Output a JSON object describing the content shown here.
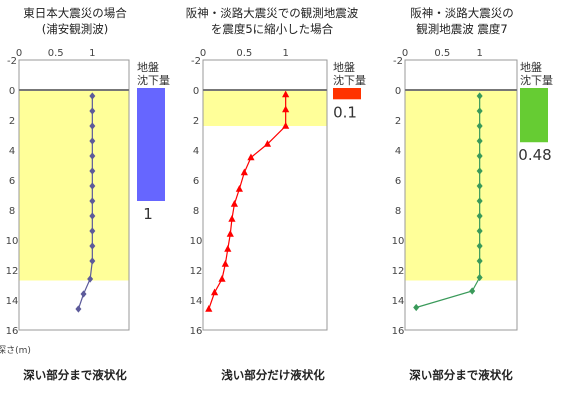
{
  "chart_data": [
    {
      "type": "line",
      "title": [
        "東日本大震災の場合",
        "(浦安観測波)"
      ],
      "x_ticks": [
        "0",
        "0.5",
        "1"
      ],
      "xlim": [
        0,
        1.5
      ],
      "ylim": [
        -2,
        16
      ],
      "y_ticks": [
        -2,
        0,
        2,
        4,
        6,
        8,
        10,
        12,
        14,
        16
      ],
      "ylabel": "深さ(m)",
      "liquefied_depth": [
        0,
        12.7
      ],
      "series": [
        {
          "color": "#5c5a9a",
          "marker": "diamond",
          "points": [
            [
              1,
              0.4
            ],
            [
              1,
              1.4
            ],
            [
              1,
              2.4
            ],
            [
              1,
              3.4
            ],
            [
              1,
              4.4
            ],
            [
              1,
              5.4
            ],
            [
              1,
              6.4
            ],
            [
              1,
              7.4
            ],
            [
              1,
              8.4
            ],
            [
              1,
              9.4
            ],
            [
              1,
              10.4
            ],
            [
              1,
              11.4
            ],
            [
              0.97,
              12.6
            ],
            [
              0.88,
              13.6
            ],
            [
              0.81,
              14.6
            ]
          ]
        }
      ],
      "settlement_label": [
        "地盤",
        "沈下量"
      ],
      "settlement_value": 1,
      "settlement_text": "1",
      "settlement_color": "#6666ff",
      "caption": "深い部分まで液状化"
    },
    {
      "type": "line",
      "title": [
        "阪神・淡路大震災での観測地震波",
        "を震度5に縮小した場合"
      ],
      "x_ticks": [
        "0",
        "0.5",
        "1"
      ],
      "xlim": [
        0,
        1.5
      ],
      "ylim": [
        -2,
        16
      ],
      "y_ticks": [
        -2,
        0,
        2,
        4,
        6,
        8,
        10,
        12,
        14,
        16
      ],
      "liquefied_depth": [
        0,
        2.4
      ],
      "series": [
        {
          "color": "#ff0000",
          "marker": "triangle",
          "points": [
            [
              1,
              0.3
            ],
            [
              1,
              1.3
            ],
            [
              1,
              2.4
            ],
            [
              0.78,
              3.6
            ],
            [
              0.58,
              4.5
            ],
            [
              0.5,
              5.5
            ],
            [
              0.44,
              6.6
            ],
            [
              0.38,
              7.6
            ],
            [
              0.35,
              8.6
            ],
            [
              0.33,
              9.6
            ],
            [
              0.3,
              10.6
            ],
            [
              0.27,
              11.6
            ],
            [
              0.23,
              12.6
            ],
            [
              0.14,
              13.5
            ],
            [
              0.07,
              14.6
            ]
          ]
        }
      ],
      "settlement_label": [
        "地盤",
        "沈下量"
      ],
      "settlement_value": 0.1,
      "settlement_text": "0.1",
      "settlement_color": "#ff3300",
      "caption": "浅い部分だけ液状化"
    },
    {
      "type": "line",
      "title": [
        "阪神・淡路大震災の",
        "観測地震波 震度7"
      ],
      "x_ticks": [
        "0",
        "0.5",
        "1"
      ],
      "xlim": [
        0,
        1.5
      ],
      "ylim": [
        -2,
        16
      ],
      "y_ticks": [
        -2,
        0,
        2,
        4,
        6,
        8,
        10,
        12,
        14,
        16
      ],
      "liquefied_depth": [
        0,
        12.7
      ],
      "series": [
        {
          "color": "#3a9a5a",
          "marker": "diamond",
          "points": [
            [
              1,
              0.4
            ],
            [
              1,
              1.4
            ],
            [
              1,
              2.4
            ],
            [
              1,
              3.4
            ],
            [
              1,
              4.4
            ],
            [
              1,
              5.4
            ],
            [
              1,
              6.4
            ],
            [
              1,
              7.4
            ],
            [
              1,
              8.4
            ],
            [
              1,
              9.4
            ],
            [
              1,
              10.4
            ],
            [
              1,
              11.4
            ],
            [
              1,
              12.5
            ],
            [
              0.9,
              13.4
            ],
            [
              0.15,
              14.5
            ]
          ]
        }
      ],
      "settlement_label": [
        "地盤",
        "沈下量"
      ],
      "settlement_value": 0.48,
      "settlement_text": "0.48",
      "settlement_color": "#66cc33",
      "caption": "深い部分まで液状化"
    }
  ]
}
